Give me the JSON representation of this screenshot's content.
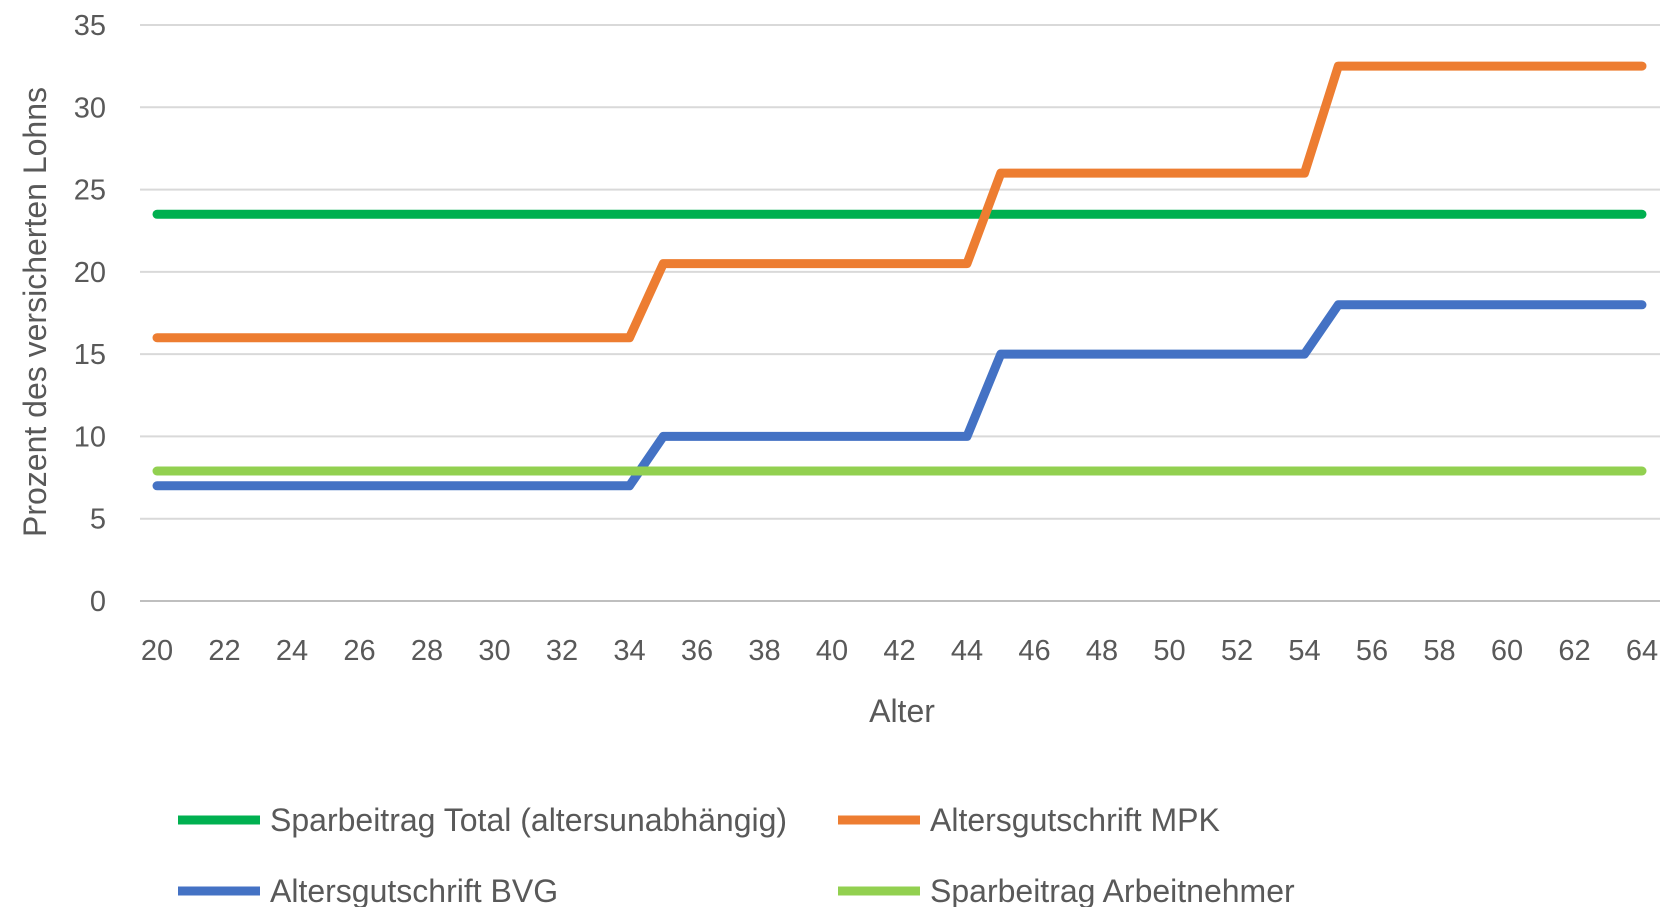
{
  "chart_data": {
    "type": "line",
    "title": "",
    "xlabel": "Alter",
    "ylabel": "Prozent des versicherten Lohns",
    "xlim": [
      20,
      64
    ],
    "ylim": [
      0,
      35
    ],
    "x_ticks": [
      20,
      22,
      24,
      26,
      28,
      30,
      32,
      34,
      36,
      38,
      40,
      42,
      44,
      46,
      48,
      50,
      52,
      54,
      56,
      58,
      60,
      62,
      64
    ],
    "y_ticks": [
      0,
      5,
      10,
      15,
      20,
      25,
      30,
      35
    ],
    "grid": "horizontal",
    "legend_position": "bottom",
    "series": [
      {
        "name": "Sparbeitrag Total (altersunabhängig)",
        "color": "#00B050",
        "points": [
          [
            20,
            23.5
          ],
          [
            64,
            23.5
          ]
        ]
      },
      {
        "name": "Altersgutschrift MPK",
        "color": "#ED7D31",
        "points": [
          [
            20,
            16
          ],
          [
            34,
            16
          ],
          [
            35,
            20.5
          ],
          [
            44,
            20.5
          ],
          [
            45,
            26
          ],
          [
            54,
            26
          ],
          [
            55,
            32.5
          ],
          [
            64,
            32.5
          ]
        ]
      },
      {
        "name": "Altersgutschrift BVG",
        "color": "#4472C4",
        "points": [
          [
            20,
            7
          ],
          [
            34,
            7
          ],
          [
            35,
            10
          ],
          [
            44,
            10
          ],
          [
            45,
            15
          ],
          [
            54,
            15
          ],
          [
            55,
            18
          ],
          [
            64,
            18
          ]
        ]
      },
      {
        "name": "Sparbeitrag Arbeitnehmer",
        "color": "#92D050",
        "points": [
          [
            20,
            7.9
          ],
          [
            64,
            7.9
          ]
        ]
      }
    ]
  }
}
